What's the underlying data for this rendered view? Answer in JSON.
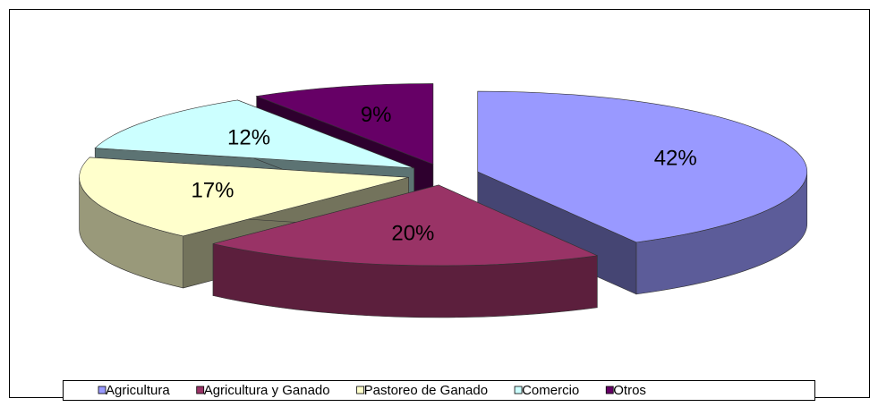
{
  "chart_data": {
    "type": "pie3d",
    "categories": [
      "Agricultura",
      "Agricultura y Ganado",
      "Pastoreo de Ganado",
      "Comercio",
      "Otros"
    ],
    "values": [
      42,
      20,
      17,
      12,
      9
    ],
    "value_labels": [
      "42%",
      "20%",
      "17%",
      "12%",
      "9%"
    ],
    "colors": [
      "#9999ff",
      "#993366",
      "#ffffcc",
      "#ccffff",
      "#660066"
    ],
    "legend": "bottom"
  }
}
